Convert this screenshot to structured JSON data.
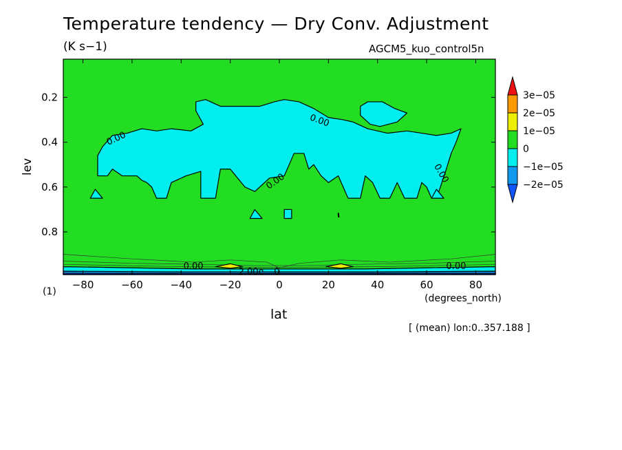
{
  "chart_data": {
    "type": "contour",
    "title": "Temperature tendency — Dry Conv. Adjustment",
    "units": "(K s−1)",
    "run_label": "AGCM5_kuo_control5n",
    "xlabel": "lat",
    "x_unit": "(degrees_north)",
    "ylabel": "lev",
    "y_scale_note": "(1)",
    "footer": "[ (mean) lon:0..357.188 ]",
    "xlim": [
      -88,
      88
    ],
    "ylim": [
      0.03,
      0.99
    ],
    "y_inverted": true,
    "x_ticks": [
      -80,
      -60,
      -40,
      -20,
      0,
      20,
      40,
      60,
      80
    ],
    "x_tick_labels": [
      "−80",
      "−60",
      "−40",
      "−20",
      "0",
      "20",
      "40",
      "60",
      "80"
    ],
    "y_ticks": [
      0.2,
      0.4,
      0.6,
      0.8
    ],
    "y_tick_labels": [
      "0.2",
      "0.4",
      "0.6",
      "0.8"
    ],
    "background_level_color": "#22dd22",
    "levels": [
      {
        "label": "3e−05",
        "color": "#ee1111"
      },
      {
        "label": "2e−05",
        "color": "#ff9900"
      },
      {
        "label": "1e−05",
        "color": "#eeee00"
      },
      {
        "label": "0",
        "color": "#22dd22"
      },
      {
        "label": "−1e−05",
        "color": "#00eeee"
      },
      {
        "label": "−2e−05",
        "color": "#1199ee"
      },
      {
        "label": "",
        "color": "#1155ff"
      }
    ],
    "contour_labels": [
      "0.00",
      "0.00",
      "0.00",
      "0.00",
      "0.00",
      "0.00",
      "−2.00e",
      "0"
    ],
    "regions": [
      {
        "name": "main-negative-region",
        "color": "#00eeee",
        "points": [
          [
            -74,
            0.46
          ],
          [
            -72,
            0.42
          ],
          [
            -68,
            0.37
          ],
          [
            -62,
            0.36
          ],
          [
            -56,
            0.34
          ],
          [
            -50,
            0.35
          ],
          [
            -44,
            0.34
          ],
          [
            -36,
            0.35
          ],
          [
            -31,
            0.32
          ],
          [
            -34,
            0.26
          ],
          [
            -34,
            0.22
          ],
          [
            -30,
            0.21
          ],
          [
            -24,
            0.24
          ],
          [
            -16,
            0.24
          ],
          [
            -8,
            0.24
          ],
          [
            -2,
            0.22
          ],
          [
            2,
            0.21
          ],
          [
            8,
            0.22
          ],
          [
            14,
            0.25
          ],
          [
            20,
            0.29
          ],
          [
            26,
            0.3
          ],
          [
            30,
            0.31
          ],
          [
            36,
            0.34
          ],
          [
            44,
            0.36
          ],
          [
            52,
            0.35
          ],
          [
            58,
            0.36
          ],
          [
            64,
            0.37
          ],
          [
            70,
            0.36
          ],
          [
            74,
            0.34
          ],
          [
            72,
            0.4
          ],
          [
            70,
            0.45
          ],
          [
            68,
            0.52
          ],
          [
            65,
            0.62
          ],
          [
            62,
            0.65
          ],
          [
            60,
            0.6
          ],
          [
            58,
            0.58
          ],
          [
            56,
            0.65
          ],
          [
            51,
            0.65
          ],
          [
            48,
            0.58
          ],
          [
            45,
            0.65
          ],
          [
            41,
            0.65
          ],
          [
            38,
            0.58
          ],
          [
            35,
            0.55
          ],
          [
            33,
            0.65
          ],
          [
            28,
            0.65
          ],
          [
            24,
            0.55
          ],
          [
            20,
            0.58
          ],
          [
            17,
            0.55
          ],
          [
            14,
            0.5
          ],
          [
            12,
            0.52
          ],
          [
            10,
            0.45
          ],
          [
            6,
            0.45
          ],
          [
            2,
            0.55
          ],
          [
            -4,
            0.56
          ],
          [
            -10,
            0.62
          ],
          [
            -14,
            0.6
          ],
          [
            -20,
            0.52
          ],
          [
            -24,
            0.52
          ],
          [
            -26,
            0.65
          ],
          [
            -32,
            0.65
          ],
          [
            -32,
            0.53
          ],
          [
            -38,
            0.55
          ],
          [
            -44,
            0.58
          ],
          [
            -46,
            0.65
          ],
          [
            -50,
            0.65
          ],
          [
            -52,
            0.6
          ],
          [
            -54,
            0.58
          ],
          [
            -56,
            0.57
          ],
          [
            -58,
            0.55
          ],
          [
            -64,
            0.55
          ],
          [
            -68,
            0.52
          ],
          [
            -70,
            0.55
          ],
          [
            -74,
            0.55
          ]
        ]
      },
      {
        "name": "upper-right-negative-region",
        "color": "#00eeee",
        "points": [
          [
            33,
            0.24
          ],
          [
            36,
            0.22
          ],
          [
            42,
            0.22
          ],
          [
            47,
            0.25
          ],
          [
            52,
            0.27
          ],
          [
            48,
            0.31
          ],
          [
            41,
            0.33
          ],
          [
            37,
            0.32
          ],
          [
            33,
            0.28
          ]
        ]
      },
      {
        "name": "left-triangle-region",
        "color": "#00eeee",
        "points": [
          [
            -77,
            0.65
          ],
          [
            -75,
            0.61
          ],
          [
            -72,
            0.65
          ]
        ]
      },
      {
        "name": "right-triangle-region",
        "color": "#00eeee",
        "points": [
          [
            62,
            0.65
          ],
          [
            64,
            0.61
          ],
          [
            67,
            0.65
          ]
        ]
      },
      {
        "name": "small-patch-left",
        "color": "#00eeee",
        "points": [
          [
            -12,
            0.74
          ],
          [
            -10,
            0.7
          ],
          [
            -7,
            0.74
          ]
        ]
      },
      {
        "name": "small-patch-right",
        "color": "#00eeee",
        "points": [
          [
            2,
            0.7
          ],
          [
            5,
            0.7
          ],
          [
            5,
            0.74
          ],
          [
            2,
            0.74
          ]
        ]
      },
      {
        "name": "near-surface-band-1",
        "color": "#00eeee",
        "points": [
          [
            -88,
            0.955
          ],
          [
            -60,
            0.96
          ],
          [
            -35,
            0.965
          ],
          [
            0,
            0.965
          ],
          [
            35,
            0.965
          ],
          [
            60,
            0.96
          ],
          [
            88,
            0.955
          ],
          [
            88,
            0.99
          ],
          [
            -88,
            0.99
          ]
        ]
      },
      {
        "name": "near-surface-band-2",
        "color": "#1199ee",
        "points": [
          [
            -88,
            0.975
          ],
          [
            -40,
            0.978
          ],
          [
            0,
            0.978
          ],
          [
            40,
            0.978
          ],
          [
            88,
            0.975
          ],
          [
            88,
            0.99
          ],
          [
            -88,
            0.99
          ]
        ]
      },
      {
        "name": "near-surface-band-3",
        "color": "#1155ff",
        "points": [
          [
            -88,
            0.984
          ],
          [
            0,
            0.985
          ],
          [
            88,
            0.984
          ],
          [
            88,
            0.99
          ],
          [
            -88,
            0.99
          ]
        ]
      },
      {
        "name": "positive-blob-south",
        "color": "#eeee00",
        "points": [
          [
            -26,
            0.955
          ],
          [
            -20,
            0.942
          ],
          [
            -15,
            0.955
          ],
          [
            -20,
            0.962
          ]
        ]
      },
      {
        "name": "positive-blob-north",
        "color": "#eeee00",
        "points": [
          [
            19,
            0.955
          ],
          [
            25,
            0.942
          ],
          [
            30,
            0.955
          ],
          [
            25,
            0.962
          ]
        ]
      }
    ]
  }
}
